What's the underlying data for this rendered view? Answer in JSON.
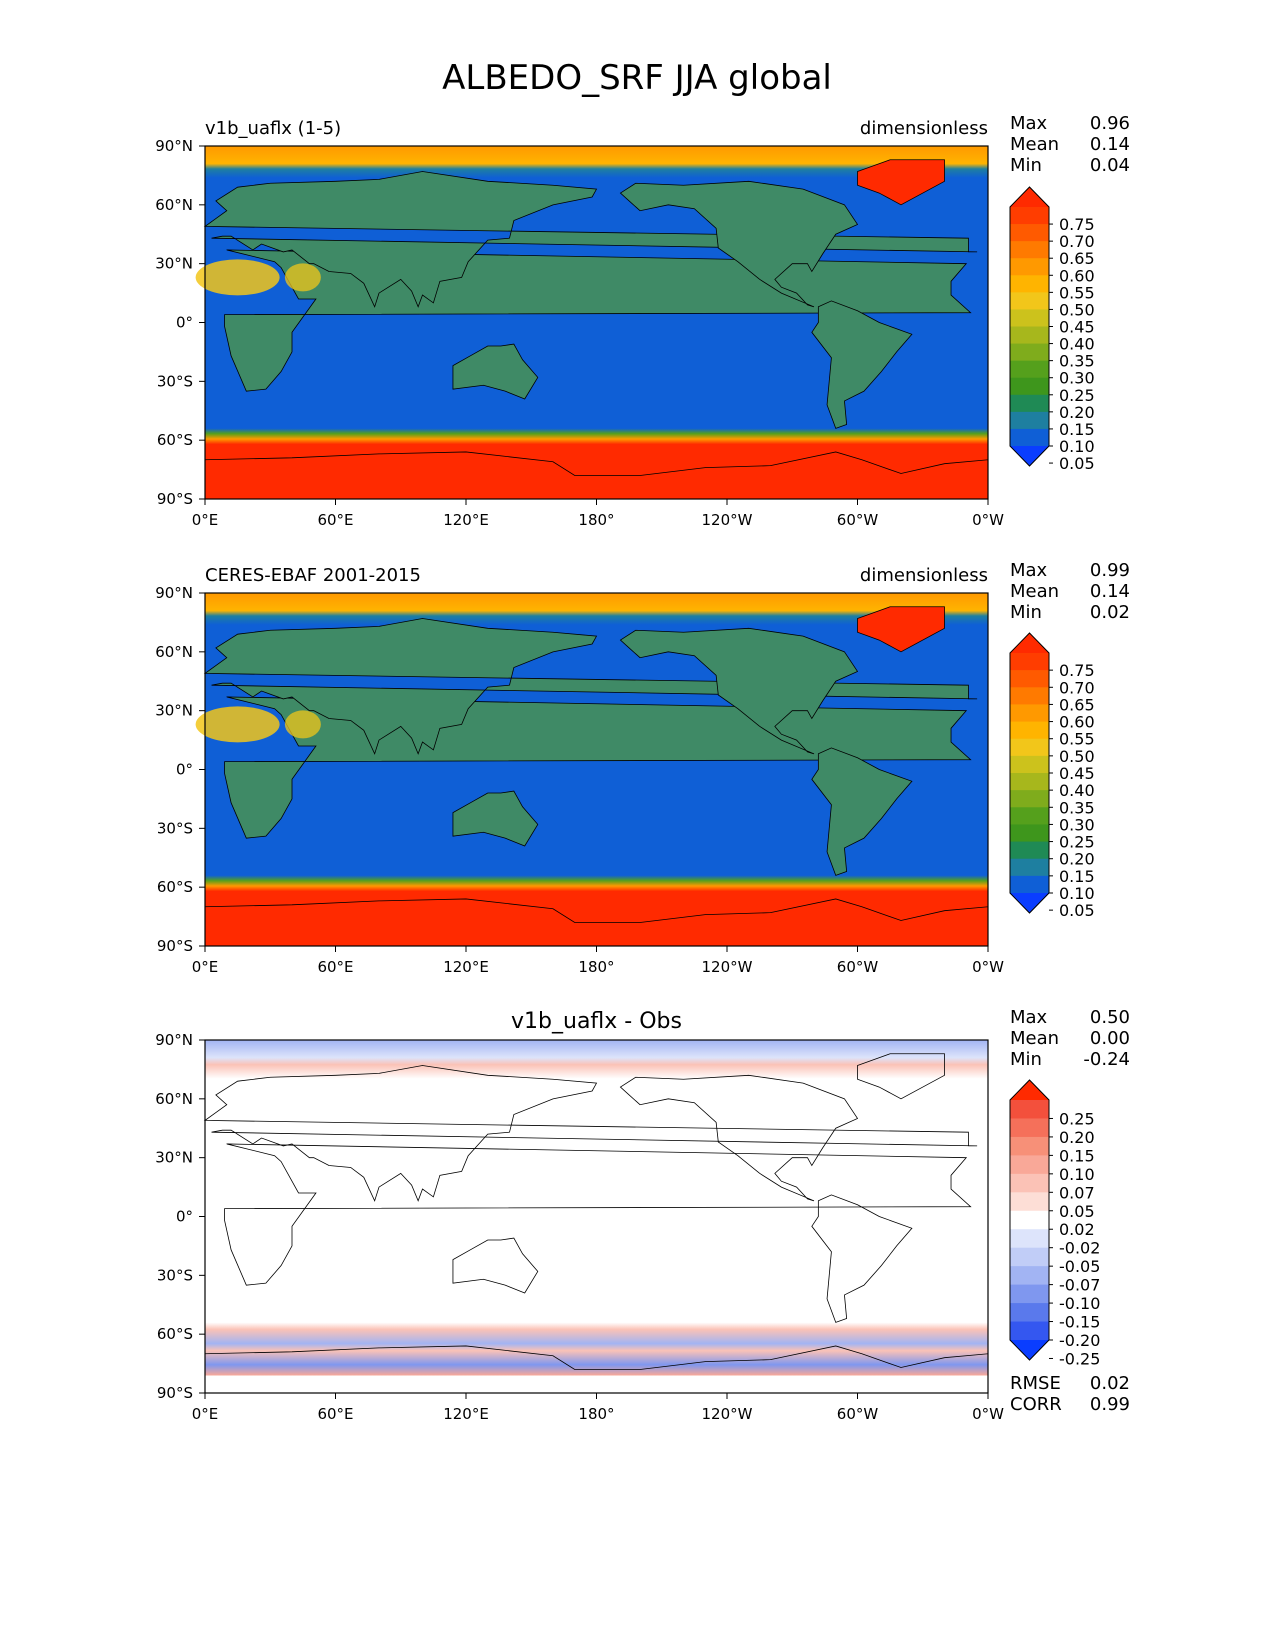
{
  "figure_title": "ALBEDO_SRF JJA global",
  "chart_data": [
    {
      "type": "heatmap",
      "panel_title_left": "v1b_uaflx (1-5)",
      "panel_title_center": "",
      "units": "dimensionless",
      "stats": [
        {
          "label": "Max",
          "value": "0.96"
        },
        {
          "label": "Mean",
          "value": "0.14"
        },
        {
          "label": "Min",
          "value": "0.04"
        }
      ],
      "colorbar": {
        "labels": [
          "0.75",
          "0.70",
          "0.65",
          "0.60",
          "0.55",
          "0.50",
          "0.45",
          "0.40",
          "0.35",
          "0.30",
          "0.25",
          "0.20",
          "0.15",
          "0.10",
          "0.05"
        ],
        "colors": [
          "#ff2a00",
          "#ff3d00",
          "#ff5a00",
          "#ff7a00",
          "#ff9900",
          "#ffb400",
          "#f2c61a",
          "#ccc21c",
          "#a7b71c",
          "#7fac1c",
          "#55a01c",
          "#3e961c",
          "#1f8a55",
          "#1e7fa0",
          "#0f5fd6",
          "#0a3dff"
        ],
        "extend": "both"
      },
      "x_ticks": [
        "0°E",
        "60°E",
        "120°E",
        "180°",
        "120°W",
        "60°W",
        "0°W"
      ],
      "y_ticks": [
        "90°N",
        "60°N",
        "30°N",
        "0°",
        "30°S",
        "60°S",
        "90°S"
      ],
      "xlim": [
        0,
        360
      ],
      "ylim": [
        -90,
        90
      ],
      "footer_stats": []
    },
    {
      "type": "heatmap",
      "panel_title_left": "CERES-EBAF 2001-2015",
      "panel_title_center": "",
      "units": "dimensionless",
      "stats": [
        {
          "label": "Max",
          "value": "0.99"
        },
        {
          "label": "Mean",
          "value": "0.14"
        },
        {
          "label": "Min",
          "value": "0.02"
        }
      ],
      "colorbar": {
        "labels": [
          "0.75",
          "0.70",
          "0.65",
          "0.60",
          "0.55",
          "0.50",
          "0.45",
          "0.40",
          "0.35",
          "0.30",
          "0.25",
          "0.20",
          "0.15",
          "0.10",
          "0.05"
        ],
        "colors": [
          "#ff2a00",
          "#ff3d00",
          "#ff5a00",
          "#ff7a00",
          "#ff9900",
          "#ffb400",
          "#f2c61a",
          "#ccc21c",
          "#a7b71c",
          "#7fac1c",
          "#55a01c",
          "#3e961c",
          "#1f8a55",
          "#1e7fa0",
          "#0f5fd6",
          "#0a3dff"
        ],
        "extend": "both"
      },
      "x_ticks": [
        "0°E",
        "60°E",
        "120°E",
        "180°",
        "120°W",
        "60°W",
        "0°W"
      ],
      "y_ticks": [
        "90°N",
        "60°N",
        "30°N",
        "0°",
        "30°S",
        "60°S",
        "90°S"
      ],
      "xlim": [
        0,
        360
      ],
      "ylim": [
        -90,
        90
      ],
      "footer_stats": []
    },
    {
      "type": "heatmap",
      "panel_title_left": "",
      "panel_title_center": "v1b_uaflx - Obs",
      "units": "",
      "stats": [
        {
          "label": "Max",
          "value": "0.50"
        },
        {
          "label": "Mean",
          "value": "0.00"
        },
        {
          "label": "Min",
          "value": "-0.24"
        }
      ],
      "colorbar": {
        "labels": [
          "0.25",
          "0.20",
          "0.15",
          "0.10",
          "0.07",
          "0.05",
          "0.02",
          "-0.02",
          "-0.05",
          "-0.07",
          "-0.10",
          "-0.15",
          "-0.20",
          "-0.25"
        ],
        "colors": [
          "#ff2a00",
          "#f3503c",
          "#f5705a",
          "#f79078",
          "#f9a898",
          "#fbc2b6",
          "#fdded6",
          "#ffffff",
          "#dde4fb",
          "#c1cdf7",
          "#a2b4f3",
          "#7f97ef",
          "#5a79ec",
          "#3457f0",
          "#0a3dff"
        ],
        "extend": "both"
      },
      "x_ticks": [
        "0°E",
        "60°E",
        "120°E",
        "180°",
        "120°W",
        "60°W",
        "0°W"
      ],
      "y_ticks": [
        "90°N",
        "60°N",
        "30°N",
        "0°",
        "30°S",
        "60°S",
        "90°S"
      ],
      "xlim": [
        0,
        360
      ],
      "ylim": [
        -90,
        90
      ],
      "footer_stats": [
        {
          "label": "RMSE",
          "value": "0.02"
        },
        {
          "label": "CORR",
          "value": "0.99"
        }
      ]
    }
  ]
}
